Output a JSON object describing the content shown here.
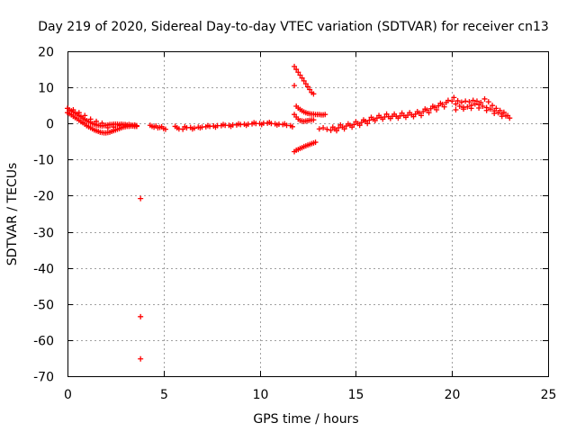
{
  "chart_data": {
    "type": "scatter",
    "title": "Day 219 of 2020, Sidereal Day-to-day VTEC variation (SDTVAR) for receiver cn13",
    "xlabel": "GPS time / hours",
    "ylabel": "SDTVAR / TECUs",
    "xlim": [
      0,
      25
    ],
    "ylim": [
      -70,
      20
    ],
    "xticks": [
      "0",
      "5",
      "10",
      "15",
      "20",
      "25"
    ],
    "yticks": [
      "20",
      "10",
      "0",
      "-10",
      "-20",
      "-30",
      "-40",
      "-50",
      "-60",
      "-70"
    ],
    "xtick_values": [
      0,
      5,
      10,
      15,
      20,
      25
    ],
    "ytick_values": [
      20,
      10,
      0,
      -10,
      -20,
      -30,
      -40,
      -50,
      -60,
      -70
    ],
    "grid": true,
    "marker": "plus",
    "colors": {
      "series": "#ff0000",
      "grid": "#a0a0a0",
      "axis": "#000000"
    },
    "series": [
      {
        "name": "SDTVAR",
        "points": [
          [
            0.0,
            4.2
          ],
          [
            0.1,
            3.8
          ],
          [
            0.2,
            3.5
          ],
          [
            0.3,
            3.2
          ],
          [
            0.4,
            2.9
          ],
          [
            0.5,
            2.6
          ],
          [
            0.6,
            2.2
          ],
          [
            0.7,
            1.9
          ],
          [
            0.8,
            1.5
          ],
          [
            0.9,
            1.1
          ],
          [
            1.0,
            0.8
          ],
          [
            1.1,
            0.5
          ],
          [
            1.2,
            0.3
          ],
          [
            1.3,
            0.0
          ],
          [
            1.4,
            -0.2
          ],
          [
            1.5,
            -0.4
          ],
          [
            1.6,
            -0.5
          ],
          [
            1.7,
            -0.6
          ],
          [
            1.8,
            -0.7
          ],
          [
            1.9,
            -0.6
          ],
          [
            2.0,
            -0.5
          ],
          [
            2.1,
            -0.4
          ],
          [
            2.2,
            -0.3
          ],
          [
            2.3,
            -0.3
          ],
          [
            2.4,
            -0.2
          ],
          [
            2.5,
            -0.2
          ],
          [
            2.6,
            -0.2
          ],
          [
            2.7,
            -0.3
          ],
          [
            2.8,
            -0.2
          ],
          [
            2.9,
            -0.3
          ],
          [
            3.0,
            -0.3
          ],
          [
            3.1,
            -0.4
          ],
          [
            3.2,
            -0.3
          ],
          [
            3.3,
            -0.4
          ],
          [
            3.4,
            -0.5
          ],
          [
            3.5,
            -0.4
          ],
          [
            3.6,
            -0.6
          ],
          [
            0.0,
            3.0
          ],
          [
            0.1,
            2.7
          ],
          [
            0.2,
            2.4
          ],
          [
            0.3,
            2.0
          ],
          [
            0.4,
            1.6
          ],
          [
            0.5,
            1.3
          ],
          [
            0.6,
            0.9
          ],
          [
            0.7,
            0.5
          ],
          [
            0.8,
            0.2
          ],
          [
            0.9,
            -0.2
          ],
          [
            1.0,
            -0.6
          ],
          [
            1.1,
            -0.9
          ],
          [
            1.2,
            -1.2
          ],
          [
            1.3,
            -1.5
          ],
          [
            1.4,
            -1.8
          ],
          [
            1.5,
            -2.0
          ],
          [
            1.6,
            -2.2
          ],
          [
            1.7,
            -2.4
          ],
          [
            1.8,
            -2.5
          ],
          [
            1.9,
            -2.6
          ],
          [
            2.0,
            -2.6
          ],
          [
            2.1,
            -2.5
          ],
          [
            2.2,
            -2.4
          ],
          [
            2.3,
            -2.2
          ],
          [
            2.4,
            -2.0
          ],
          [
            2.5,
            -1.8
          ],
          [
            2.6,
            -1.6
          ],
          [
            2.7,
            -1.4
          ],
          [
            2.8,
            -1.2
          ],
          [
            2.9,
            -1.0
          ],
          [
            3.0,
            -0.9
          ],
          [
            3.1,
            -0.8
          ],
          [
            3.2,
            -0.8
          ],
          [
            3.3,
            -0.7
          ],
          [
            3.4,
            -0.7
          ],
          [
            3.5,
            -0.8
          ],
          [
            3.6,
            -0.8
          ],
          [
            0.3,
            3.8
          ],
          [
            0.6,
            3.0
          ],
          [
            0.9,
            2.2
          ],
          [
            1.2,
            1.2
          ],
          [
            1.5,
            0.6
          ],
          [
            1.8,
            0.1
          ],
          [
            2.1,
            -1.2
          ],
          [
            2.4,
            -1.0
          ],
          [
            2.7,
            -0.6
          ],
          [
            3.0,
            -0.5
          ],
          [
            4.3,
            -0.5
          ],
          [
            4.4,
            -0.8
          ],
          [
            4.5,
            -1.0
          ],
          [
            4.6,
            -0.7
          ],
          [
            4.7,
            -1.2
          ],
          [
            4.8,
            -1.1
          ],
          [
            4.9,
            -0.9
          ],
          [
            5.0,
            -1.4
          ],
          [
            5.1,
            -1.6
          ],
          [
            3.8,
            -20.8
          ],
          [
            3.8,
            -53.5
          ],
          [
            3.8,
            -65.2
          ],
          [
            5.6,
            -0.8
          ],
          [
            5.8,
            -1.5
          ],
          [
            6.0,
            -1.6
          ],
          [
            6.2,
            -1.2
          ],
          [
            6.4,
            -1.1
          ],
          [
            6.6,
            -1.3
          ],
          [
            6.8,
            -1.0
          ],
          [
            7.0,
            -1.0
          ],
          [
            7.2,
            -0.9
          ],
          [
            7.4,
            -0.8
          ],
          [
            7.6,
            -0.7
          ],
          [
            7.8,
            -0.6
          ],
          [
            8.0,
            -0.6
          ],
          [
            8.2,
            -0.5
          ],
          [
            8.4,
            -0.5
          ],
          [
            8.6,
            -0.4
          ],
          [
            8.8,
            -0.4
          ],
          [
            9.0,
            -0.3
          ],
          [
            9.2,
            -0.2
          ],
          [
            9.4,
            -0.2
          ],
          [
            9.6,
            -0.1
          ],
          [
            9.8,
            0.0
          ],
          [
            10.0,
            0.0
          ],
          [
            10.2,
            0.1
          ],
          [
            10.4,
            0.1
          ],
          [
            10.6,
            0.0
          ],
          [
            10.8,
            -0.1
          ],
          [
            11.0,
            -0.2
          ],
          [
            11.2,
            -0.3
          ],
          [
            11.4,
            -0.5
          ],
          [
            11.6,
            -0.6
          ],
          [
            5.7,
            -1.2
          ],
          [
            6.1,
            -0.9
          ],
          [
            6.5,
            -1.5
          ],
          [
            6.9,
            -1.2
          ],
          [
            7.3,
            -0.6
          ],
          [
            7.7,
            -1.0
          ],
          [
            8.1,
            -0.3
          ],
          [
            8.5,
            -0.8
          ],
          [
            8.9,
            -0.1
          ],
          [
            9.3,
            -0.5
          ],
          [
            9.7,
            0.2
          ],
          [
            10.1,
            -0.3
          ],
          [
            10.5,
            0.3
          ],
          [
            10.9,
            -0.4
          ],
          [
            11.3,
            -0.1
          ],
          [
            11.7,
            -0.9
          ],
          [
            11.8,
            10.5
          ],
          [
            11.8,
            15.8
          ],
          [
            11.9,
            15.0
          ],
          [
            12.0,
            14.2
          ],
          [
            12.1,
            13.4
          ],
          [
            12.2,
            12.6
          ],
          [
            12.3,
            11.8
          ],
          [
            12.4,
            11.0
          ],
          [
            12.5,
            10.2
          ],
          [
            12.6,
            9.4
          ],
          [
            12.7,
            8.6
          ],
          [
            12.8,
            8.2
          ],
          [
            11.9,
            4.8
          ],
          [
            12.0,
            4.3
          ],
          [
            12.1,
            3.9
          ],
          [
            12.2,
            3.5
          ],
          [
            12.3,
            3.2
          ],
          [
            12.4,
            3.0
          ],
          [
            12.5,
            2.8
          ],
          [
            12.6,
            2.7
          ],
          [
            12.7,
            2.6
          ],
          [
            12.8,
            2.6
          ],
          [
            12.9,
            2.5
          ],
          [
            13.0,
            2.5
          ],
          [
            13.1,
            2.5
          ],
          [
            13.2,
            2.4
          ],
          [
            13.3,
            2.4
          ],
          [
            13.4,
            2.5
          ],
          [
            11.8,
            2.5
          ],
          [
            11.9,
            1.8
          ],
          [
            12.0,
            1.2
          ],
          [
            12.1,
            0.8
          ],
          [
            12.2,
            0.7
          ],
          [
            12.3,
            0.6
          ],
          [
            12.4,
            0.7
          ],
          [
            12.5,
            0.8
          ],
          [
            12.6,
            0.9
          ],
          [
            12.7,
            1.0
          ],
          [
            12.8,
            1.0
          ],
          [
            11.8,
            -7.8
          ],
          [
            11.9,
            -7.4
          ],
          [
            12.0,
            -7.2
          ],
          [
            12.1,
            -6.9
          ],
          [
            12.2,
            -6.7
          ],
          [
            12.3,
            -6.4
          ],
          [
            12.4,
            -6.2
          ],
          [
            12.5,
            -6.0
          ],
          [
            12.6,
            -5.8
          ],
          [
            12.7,
            -5.6
          ],
          [
            12.8,
            -5.4
          ],
          [
            12.9,
            -5.2
          ],
          [
            13.1,
            -1.5
          ],
          [
            13.3,
            -1.2
          ],
          [
            13.5,
            -1.6
          ],
          [
            13.7,
            -1.9
          ],
          [
            13.9,
            -1.5
          ],
          [
            14.1,
            -1.2
          ],
          [
            14.3,
            -1.0
          ],
          [
            14.5,
            -0.7
          ],
          [
            14.7,
            -0.5
          ],
          [
            14.9,
            -0.3
          ],
          [
            15.1,
            0.0
          ],
          [
            15.3,
            0.3
          ],
          [
            15.5,
            0.6
          ],
          [
            15.7,
            0.9
          ],
          [
            15.9,
            1.2
          ],
          [
            16.1,
            1.5
          ],
          [
            16.3,
            1.7
          ],
          [
            16.5,
            1.8
          ],
          [
            16.7,
            1.9
          ],
          [
            16.9,
            2.0
          ],
          [
            17.1,
            2.0
          ],
          [
            17.3,
            2.1
          ],
          [
            17.5,
            2.2
          ],
          [
            17.7,
            2.3
          ],
          [
            17.9,
            2.4
          ],
          [
            18.1,
            2.6
          ],
          [
            18.3,
            2.9
          ],
          [
            18.5,
            3.3
          ],
          [
            18.7,
            3.7
          ],
          [
            18.9,
            4.1
          ],
          [
            19.1,
            4.5
          ],
          [
            19.3,
            4.9
          ],
          [
            19.5,
            5.3
          ],
          [
            19.7,
            5.8
          ],
          [
            13.8,
            -1.0
          ],
          [
            14.2,
            -0.4
          ],
          [
            14.6,
            -0.1
          ],
          [
            15.0,
            0.5
          ],
          [
            15.4,
            1.0
          ],
          [
            15.8,
            1.7
          ],
          [
            16.2,
            2.2
          ],
          [
            16.6,
            2.6
          ],
          [
            17.0,
            2.6
          ],
          [
            17.4,
            2.9
          ],
          [
            17.8,
            3.0
          ],
          [
            18.2,
            3.3
          ],
          [
            18.6,
            4.0
          ],
          [
            19.0,
            4.8
          ],
          [
            19.4,
            5.6
          ],
          [
            19.8,
            6.4
          ],
          [
            14.0,
            -2.0
          ],
          [
            14.4,
            -1.5
          ],
          [
            14.8,
            -1.0
          ],
          [
            15.2,
            -0.5
          ],
          [
            15.6,
            0.0
          ],
          [
            16.0,
            0.8
          ],
          [
            16.4,
            1.2
          ],
          [
            16.8,
            1.4
          ],
          [
            17.2,
            1.5
          ],
          [
            17.6,
            1.7
          ],
          [
            18.0,
            1.9
          ],
          [
            18.4,
            2.2
          ],
          [
            18.8,
            3.0
          ],
          [
            19.2,
            3.8
          ],
          [
            19.6,
            4.6
          ],
          [
            20.0,
            6.2
          ],
          [
            20.2,
            5.4
          ],
          [
            20.4,
            4.8
          ],
          [
            20.6,
            4.5
          ],
          [
            20.8,
            4.6
          ],
          [
            21.0,
            5.0
          ],
          [
            21.2,
            5.4
          ],
          [
            21.4,
            5.2
          ],
          [
            21.6,
            4.8
          ],
          [
            21.8,
            4.4
          ],
          [
            22.0,
            4.0
          ],
          [
            22.2,
            3.5
          ],
          [
            22.4,
            3.0
          ],
          [
            22.6,
            2.6
          ],
          [
            22.8,
            2.1
          ],
          [
            23.0,
            1.5
          ],
          [
            20.1,
            7.2
          ],
          [
            20.3,
            6.3
          ],
          [
            20.5,
            5.9
          ],
          [
            20.7,
            6.2
          ],
          [
            20.9,
            6.0
          ],
          [
            21.1,
            6.4
          ],
          [
            21.3,
            6.2
          ],
          [
            21.5,
            5.8
          ],
          [
            21.7,
            6.8
          ],
          [
            21.9,
            6.0
          ],
          [
            22.1,
            5.0
          ],
          [
            22.3,
            4.2
          ],
          [
            22.5,
            3.6
          ],
          [
            22.7,
            3.1
          ],
          [
            22.9,
            2.2
          ],
          [
            20.2,
            3.8
          ],
          [
            20.6,
            4.0
          ],
          [
            21.0,
            4.2
          ],
          [
            21.4,
            4.3
          ],
          [
            21.8,
            3.6
          ],
          [
            22.2,
            2.8
          ],
          [
            22.6,
            2.0
          ]
        ]
      }
    ]
  }
}
